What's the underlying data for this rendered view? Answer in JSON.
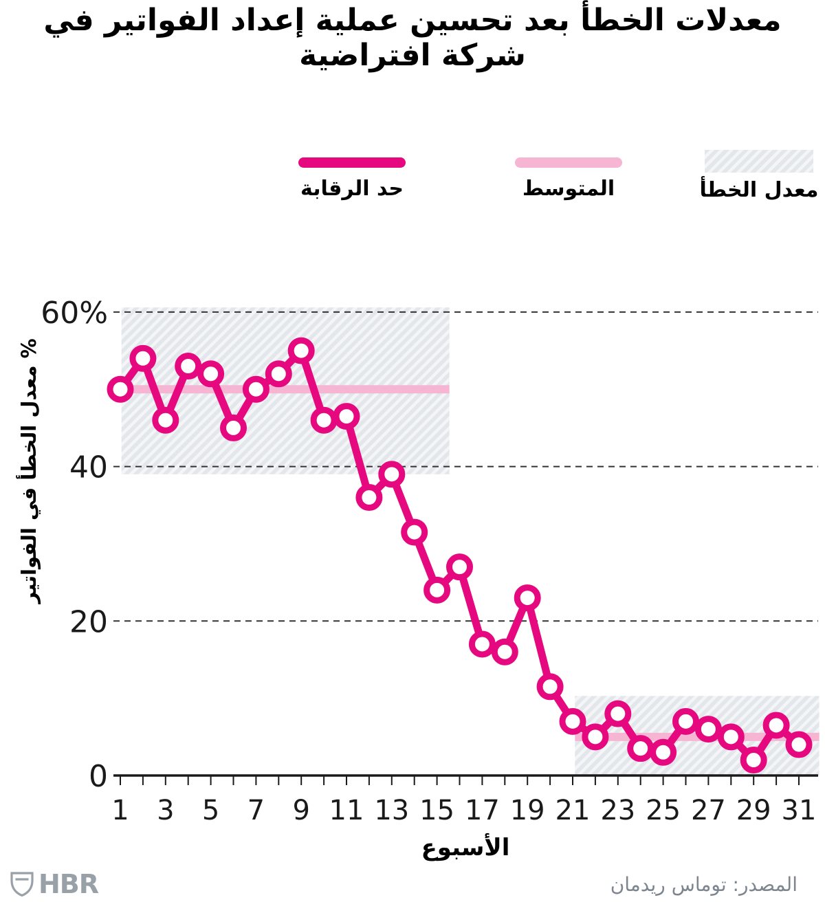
{
  "title": "معدلات الخطأ بعد تحسين عملية إعداد الفواتير في شركة افتراضية",
  "legend": {
    "control_limit": "حد الرقابة",
    "mean": "المتوسط",
    "error_rate": "معدل الخطأ"
  },
  "source": "المصدر: توماس ريدمان",
  "brand": {
    "logo_text": "HBR"
  },
  "colors": {
    "line": "#e5087f",
    "mean_line": "#f5b5d3",
    "band_bg": "#e3e6ea",
    "band_stripe": "#f3f5f7",
    "grid": "#333333",
    "axis": "#1a1a1a",
    "muted_gray": "#7d858e",
    "logo_gray": "#98a0a8"
  },
  "chart_data": {
    "type": "line",
    "title": "معدلات الخطأ بعد تحسين عملية إعداد الفواتير في شركة افتراضية",
    "xlabel": "الأسبوع",
    "ylabel": "% معدل الخطأ في الفواتير",
    "x": [
      1,
      2,
      3,
      4,
      5,
      6,
      7,
      8,
      9,
      10,
      11,
      12,
      13,
      14,
      15,
      16,
      17,
      18,
      19,
      20,
      21,
      22,
      23,
      24,
      25,
      26,
      27,
      28,
      29,
      30,
      31
    ],
    "series": [
      {
        "name": "معدل الخطأ",
        "values": [
          50,
          54,
          46,
          53,
          52,
          45,
          50,
          52,
          55,
          46,
          46.5,
          36,
          39,
          31.5,
          24,
          27,
          17,
          16,
          23,
          11.5,
          7,
          5,
          8,
          3.5,
          3,
          7,
          6,
          5,
          2,
          6.5,
          4
        ]
      }
    ],
    "mean_segments": [
      {
        "from_week": 1.05,
        "to_week": 15.55,
        "value": 50
      },
      {
        "from_week": 21.1,
        "to_week": 31.9,
        "value": 5
      }
    ],
    "control_bands": [
      {
        "from_week": 1.05,
        "to_week": 15.55,
        "low": 39,
        "high": 60.6
      },
      {
        "from_week": 21.1,
        "to_week": 31.9,
        "low": 0,
        "high": 10.3
      }
    ],
    "yticks": [
      {
        "value": 0,
        "label": "0"
      },
      {
        "value": 20,
        "label": "20"
      },
      {
        "value": 40,
        "label": "40"
      },
      {
        "value": 60,
        "label": "60%"
      }
    ],
    "xticks": [
      1,
      3,
      5,
      7,
      9,
      11,
      13,
      15,
      17,
      19,
      21,
      23,
      25,
      27,
      29,
      31
    ],
    "xlim": [
      1,
      31
    ],
    "ylim": [
      0,
      62
    ],
    "grid": "dashed-horizontal",
    "legend_position": "top"
  }
}
